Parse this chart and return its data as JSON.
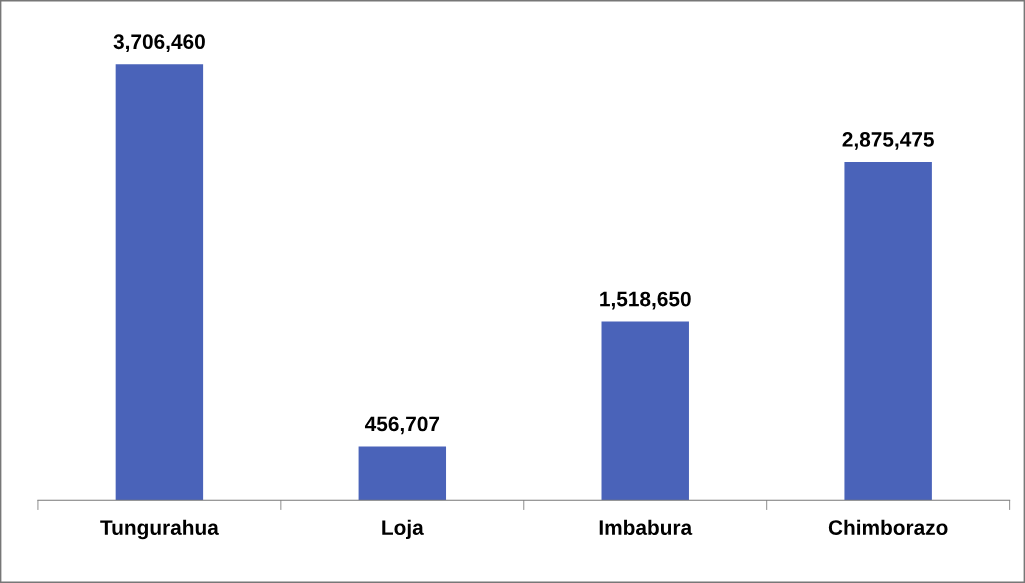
{
  "chart_data": {
    "type": "bar",
    "categories": [
      "Tungurahua",
      "Loja",
      "Imbabura",
      "Chimborazo"
    ],
    "values": [
      3706460,
      456707,
      1518650,
      2875475
    ],
    "value_labels": [
      "3,706,460",
      "456,707",
      "1,518,650",
      "2,875,475"
    ],
    "color": "#4a63b9",
    "grid": false,
    "legend": false
  }
}
